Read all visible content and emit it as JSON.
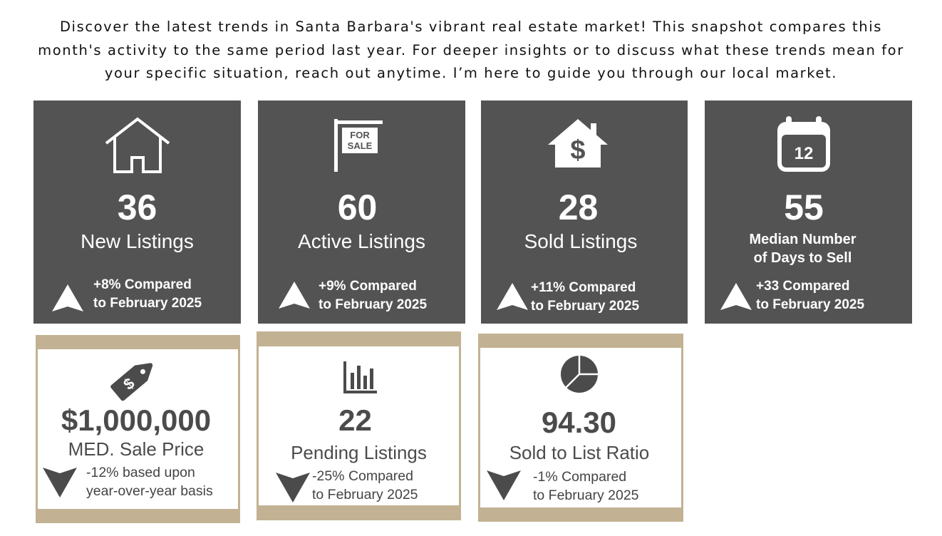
{
  "intro": {
    "line1": "Discover the latest trends in Santa Barbara's vibrant real estate market! This snapshot compares this",
    "line2": "month's activity to the same period last year. For deeper insights or to discuss what these trends mean for",
    "line3": "your specific situation, reach out anytime. I’m here to guide you through our local market."
  },
  "dark_cards": [
    {
      "icon": "house-outline-icon",
      "value": "36",
      "label": "New Listings",
      "trend_dir": "up",
      "trend_line1": "+8% Compared",
      "trend_line2": "to February 2025"
    },
    {
      "icon": "for-sale-sign-icon",
      "sign_line1": "FOR",
      "sign_line2": "SALE",
      "value": "60",
      "label": "Active Listings",
      "trend_dir": "up",
      "trend_line1": "+9% Compared",
      "trend_line2": "to February 2025"
    },
    {
      "icon": "house-dollar-icon",
      "value": "28",
      "label": "Sold Listings",
      "trend_dir": "up",
      "trend_line1": "+11% Compared",
      "trend_line2": "to February 2025"
    },
    {
      "icon": "calendar-icon",
      "calendar_day": "12",
      "value": "55",
      "label_line1": "Median Number",
      "label_line2": "of Days to Sell",
      "trend_dir": "up",
      "trend_line1": "+33 Compared",
      "trend_line2": "to February 2025"
    }
  ],
  "light_cards": [
    {
      "icon": "price-tag-icon",
      "value": "$1,000,000",
      "label": "MED. Sale Price",
      "trend_dir": "down",
      "trend_line1": "-12% based upon",
      "trend_line2": "year-over-year basis"
    },
    {
      "icon": "bar-chart-icon",
      "value": "22",
      "label": "Pending Listings",
      "trend_dir": "down",
      "trend_line1": "-25% Compared",
      "trend_line2": "to February 2025"
    },
    {
      "icon": "pie-chart-icon",
      "value": "94.30",
      "label": "Sold to List Ratio",
      "trend_dir": "down",
      "trend_line1": "-1% Compared",
      "trend_line2": "to February 2025"
    }
  ],
  "colors": {
    "dark_card_bg": "#535353",
    "light_card_frame": "#c2b293",
    "text_dark": "#4b4b4b"
  }
}
